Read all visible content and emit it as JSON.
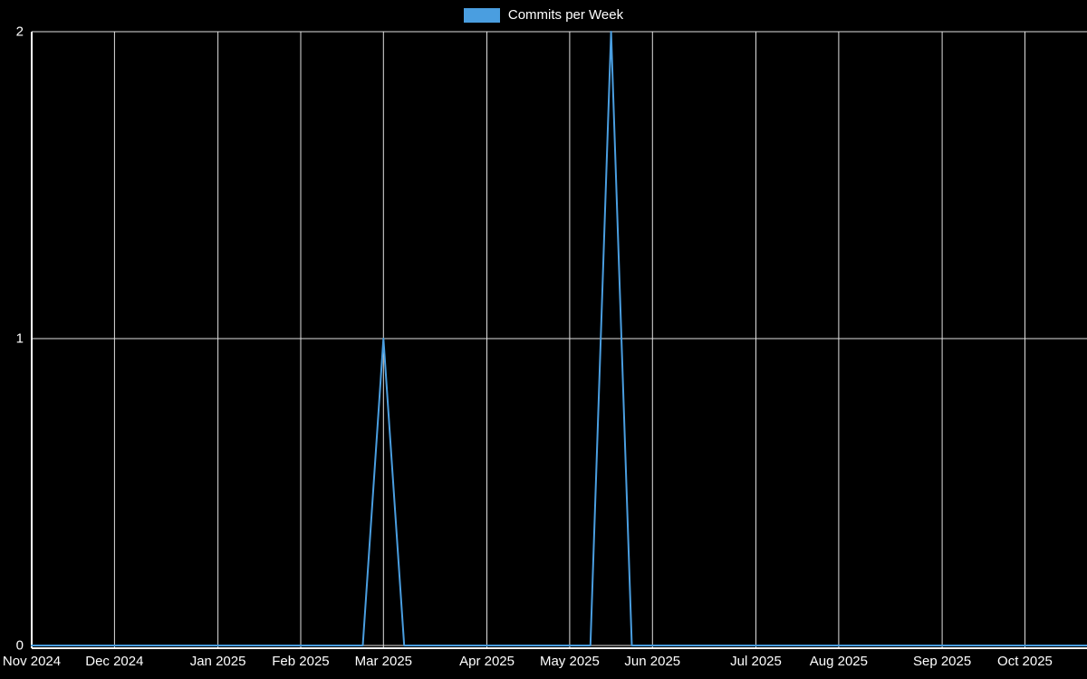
{
  "legend": {
    "label": "Commits per Week"
  },
  "colors": {
    "background": "#000000",
    "line": "#4a9ee0",
    "grid": "#e0e0e0",
    "axis": "#ffffff",
    "text": "#ffffff"
  },
  "chart_data": {
    "type": "line",
    "title": "",
    "legend_label": "Commits per Week",
    "legend_position": "top-center",
    "grid": true,
    "ylim": [
      0,
      2
    ],
    "y_ticks": [
      0,
      1,
      2
    ],
    "x_ticks": [
      {
        "date": "2024-11-03",
        "label": "Nov 2024"
      },
      {
        "date": "2024-12-01",
        "label": "Dec 2024"
      },
      {
        "date": "2025-01-05",
        "label": "Jan 2025"
      },
      {
        "date": "2025-02-02",
        "label": "Feb 2025"
      },
      {
        "date": "2025-03-02",
        "label": "Mar 2025"
      },
      {
        "date": "2025-04-06",
        "label": "Apr 2025"
      },
      {
        "date": "2025-05-04",
        "label": "May 2025"
      },
      {
        "date": "2025-06-01",
        "label": "Jun 2025"
      },
      {
        "date": "2025-07-06",
        "label": "Jul 2025"
      },
      {
        "date": "2025-08-03",
        "label": "Aug 2025"
      },
      {
        "date": "2025-09-07",
        "label": "Sep 2025"
      },
      {
        "date": "2025-10-05",
        "label": "Oct 2025"
      }
    ],
    "x": [
      "2024-11-03",
      "2024-11-10",
      "2024-11-17",
      "2024-11-24",
      "2024-12-01",
      "2024-12-08",
      "2024-12-15",
      "2024-12-22",
      "2024-12-29",
      "2025-01-05",
      "2025-01-12",
      "2025-01-19",
      "2025-01-26",
      "2025-02-02",
      "2025-02-09",
      "2025-02-16",
      "2025-02-23",
      "2025-03-02",
      "2025-03-09",
      "2025-03-16",
      "2025-03-23",
      "2025-03-30",
      "2025-04-06",
      "2025-04-13",
      "2025-04-20",
      "2025-04-27",
      "2025-05-04",
      "2025-05-11",
      "2025-05-18",
      "2025-05-25",
      "2025-06-01",
      "2025-06-08",
      "2025-06-15",
      "2025-06-22",
      "2025-06-29",
      "2025-07-06",
      "2025-07-13",
      "2025-07-20",
      "2025-07-27",
      "2025-08-03",
      "2025-08-10",
      "2025-08-17",
      "2025-08-24",
      "2025-08-31",
      "2025-09-07",
      "2025-09-14",
      "2025-09-21",
      "2025-09-28",
      "2025-10-05",
      "2025-10-12",
      "2025-10-19",
      "2025-10-26"
    ],
    "series": [
      {
        "name": "Commits per Week",
        "color": "#4a9ee0",
        "values": [
          0,
          0,
          0,
          0,
          0,
          0,
          0,
          0,
          0,
          0,
          0,
          0,
          0,
          0,
          0,
          0,
          0,
          1,
          0,
          0,
          0,
          0,
          0,
          0,
          0,
          0,
          0,
          0,
          2,
          0,
          0,
          0,
          0,
          0,
          0,
          0,
          0,
          0,
          0,
          0,
          0,
          0,
          0,
          0,
          0,
          0,
          0,
          0,
          0,
          0,
          0,
          0
        ]
      }
    ]
  }
}
